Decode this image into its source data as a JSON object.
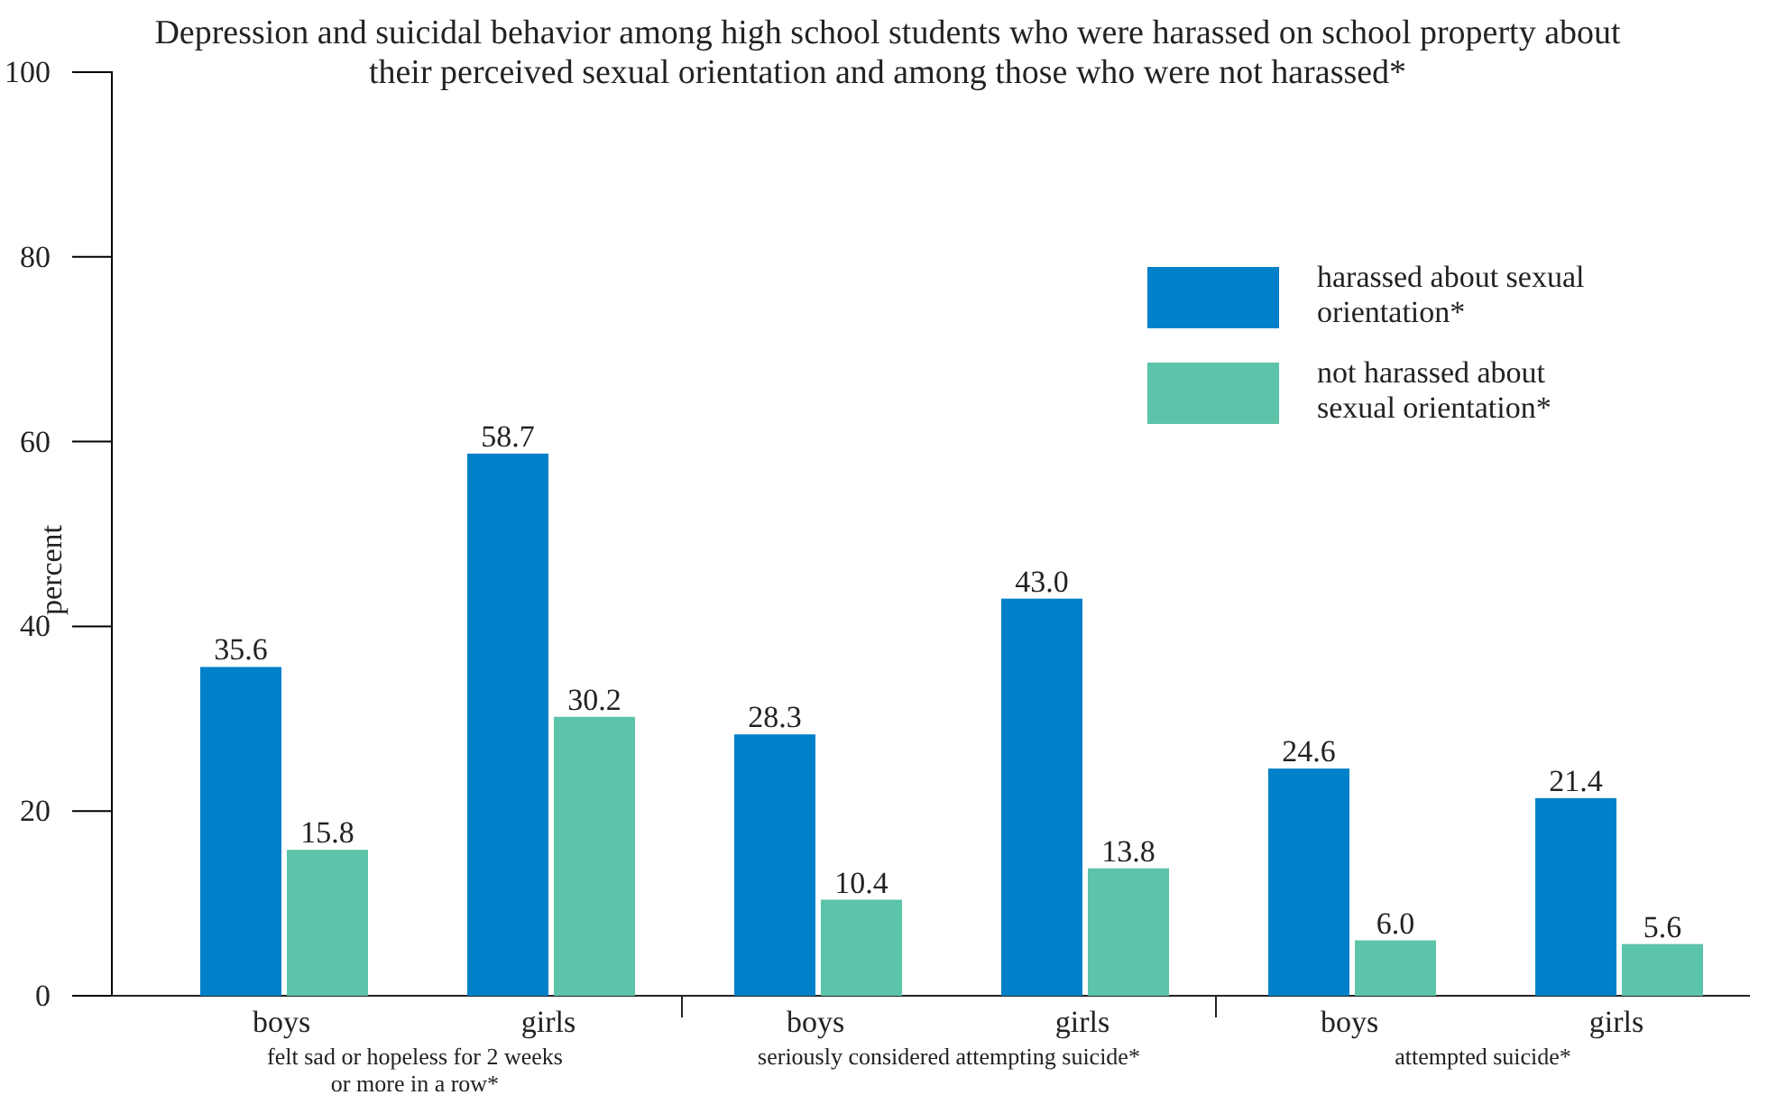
{
  "chart_data": {
    "type": "bar",
    "title": "Depression and suicidal behavior among high school students who were harassed on school property about their perceived sexual orientation and among those who were not harassed*",
    "ylabel": "percent",
    "categories": [
      "boys",
      "girls",
      "boys",
      "girls",
      "boys",
      "girls"
    ],
    "series": [
      {
        "name": "harassed about sexual orientation*",
        "color": "#0080c8",
        "values": [
          35.6,
          58.7,
          28.3,
          43.0,
          24.6,
          21.4
        ],
        "value_labels": [
          "35.6",
          "58.7",
          "28.3",
          "43.0",
          "24.6",
          "21.4"
        ]
      },
      {
        "name": "not harassed about sexual orientation*",
        "color": "#5cc4a8",
        "values": [
          15.8,
          30.2,
          10.4,
          13.8,
          6.0,
          5.6
        ],
        "value_labels": [
          "15.8",
          "30.2",
          "10.4",
          "13.8",
          "6.0",
          "5.6"
        ]
      }
    ],
    "annotations": [
      "felt sad or hopeless for 2 weeks or more in a row*",
      "seriously considered attempting suicide*",
      "attempted suicide*"
    ],
    "ylim": [
      0,
      100
    ],
    "yticks": [
      0,
      20,
      40,
      60,
      80,
      100
    ],
    "grid": false,
    "legend": "top right"
  }
}
